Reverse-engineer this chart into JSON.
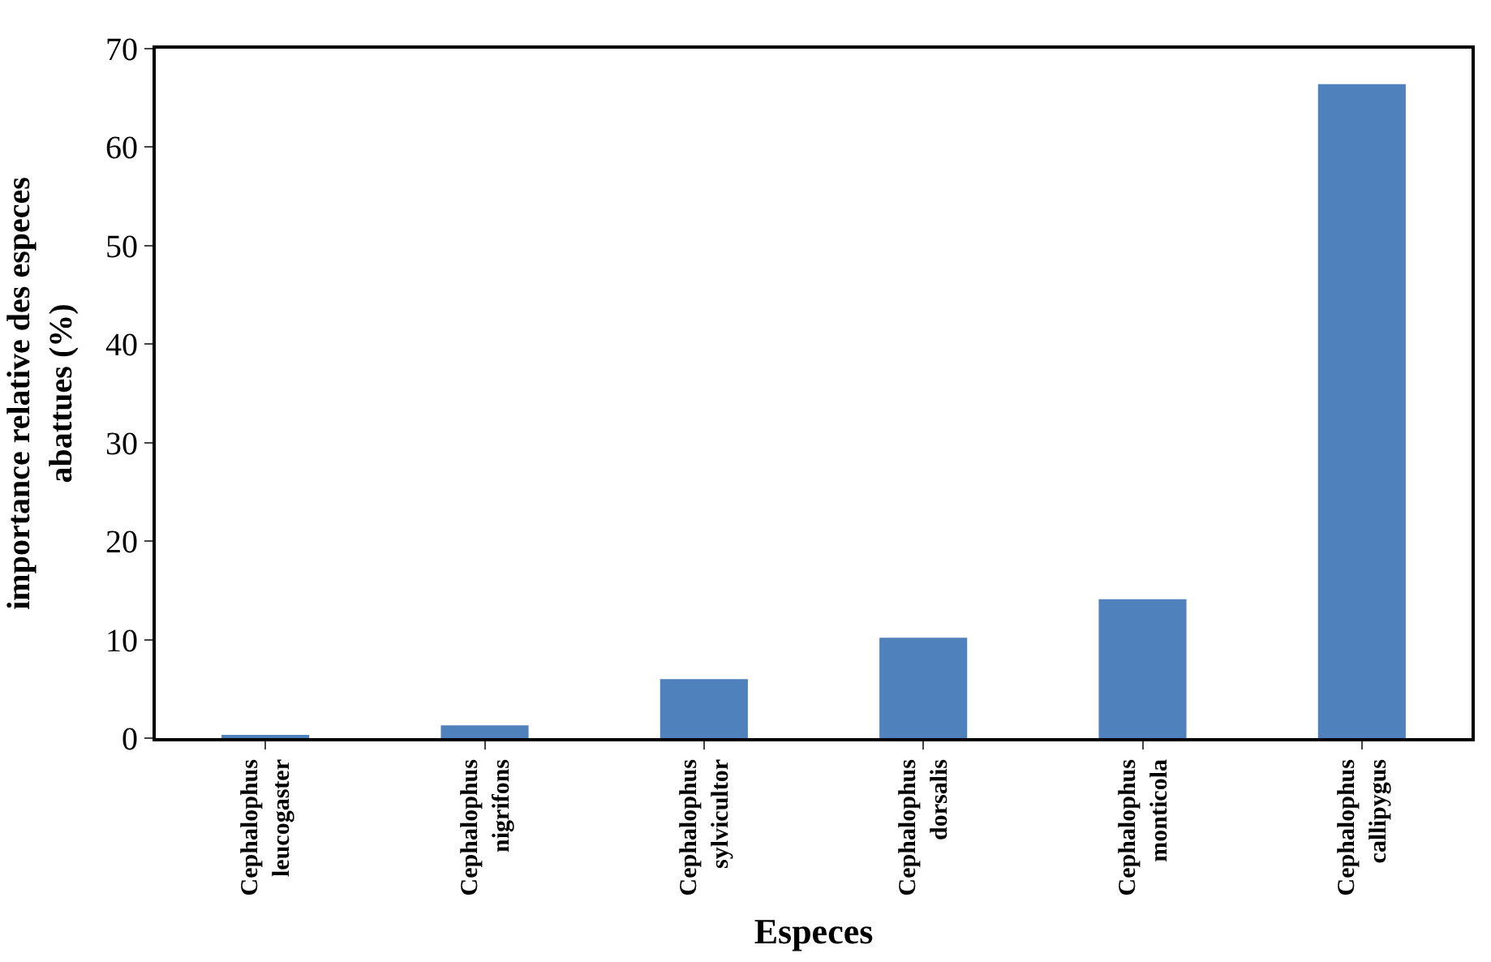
{
  "chart_data": {
    "type": "bar",
    "xlabel": "Especes",
    "ylabel": "importance relative des especes\nabattues (%)",
    "categories": [
      "Cephalophus\nleucogaster",
      "Cephalophus\nnigrifons",
      "Cephalophus\nsylvicultor",
      "Cephalophus\ndorsalis",
      "Cephalophus\nmonticola",
      "Cephalophus\ncallipygus"
    ],
    "values": [
      0.3,
      1.3,
      6.0,
      10.2,
      14.1,
      66.4
    ],
    "color": "#4f81bd",
    "ylim": [
      0,
      70
    ],
    "yticks": [
      0,
      10,
      20,
      30,
      40,
      50,
      60,
      70
    ],
    "legend": false
  }
}
